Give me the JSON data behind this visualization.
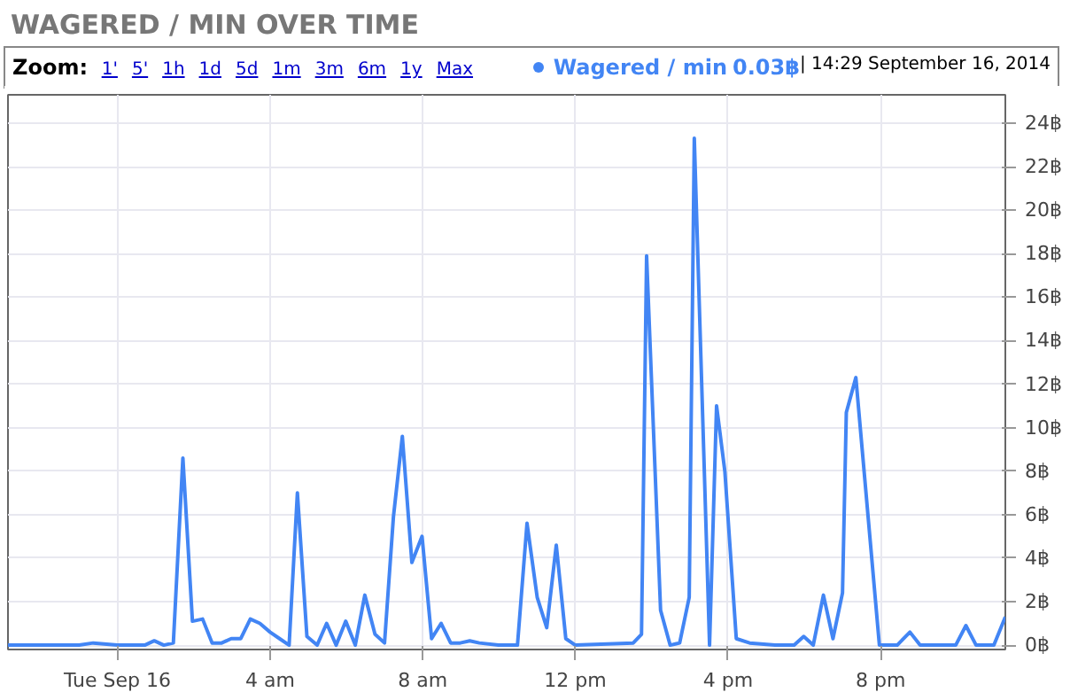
{
  "chart_data": {
    "type": "line",
    "title": "WAGERED / MIN OVER TIME",
    "annotations": [
      "Zoom:",
      "1'",
      "5'",
      "1h",
      "1d",
      "5d",
      "1m",
      "3m",
      "6m",
      "1y",
      "Max",
      "0.03฿",
      "| 14:29 September 16, 2014"
    ],
    "legend": "top right",
    "grid": true,
    "line_style": "solid",
    "xlim": [
      "2014-09-15T21:08",
      "2014-09-16T23:16"
    ],
    "xticks": [
      {
        "value": "2014-09-16T00:00",
        "label": "Tue Sep 16"
      },
      {
        "value": "2014-09-16T04:00",
        "label": "4 am"
      },
      {
        "value": "2014-09-16T08:00",
        "label": "8 am"
      },
      {
        "value": "2014-09-16T12:00",
        "label": "12 pm"
      },
      {
        "value": "2014-09-16T16:00",
        "label": "4 pm"
      },
      {
        "value": "2014-09-16T20:00",
        "label": "8 pm"
      }
    ],
    "ylim": [
      -0.2,
      25.3
    ],
    "yticks": [
      {
        "value": 0,
        "label": "0฿"
      },
      {
        "value": 2,
        "label": "2฿"
      },
      {
        "value": 4,
        "label": "4฿"
      },
      {
        "value": 6,
        "label": "6฿"
      },
      {
        "value": 8,
        "label": "8฿"
      },
      {
        "value": 10,
        "label": "10฿"
      },
      {
        "value": 12,
        "label": "12฿"
      },
      {
        "value": 14,
        "label": "14฿"
      },
      {
        "value": 16,
        "label": "16฿"
      },
      {
        "value": 18,
        "label": "18฿"
      },
      {
        "value": 20,
        "label": "20฿"
      },
      {
        "value": 22,
        "label": "22฿"
      },
      {
        "value": 24,
        "label": "24฿"
      }
    ],
    "x": [
      "2014-09-15T21:08",
      "2014-09-15T21:40",
      "2014-09-15T23:00",
      "2014-09-15T23:22",
      "2014-09-16T00:00",
      "2014-09-16T00:43",
      "2014-09-16T00:58",
      "2014-09-16T01:13",
      "2014-09-16T01:28",
      "2014-09-16T01:43",
      "2014-09-16T01:58",
      "2014-09-16T02:14",
      "2014-09-16T02:29",
      "2014-09-16T02:44",
      "2014-09-16T02:59",
      "2014-09-16T03:14",
      "2014-09-16T03:29",
      "2014-09-16T03:44",
      "2014-09-16T04:00",
      "2014-09-16T04:15",
      "2014-09-16T04:30",
      "2014-09-16T04:43",
      "2014-09-16T04:58",
      "2014-09-16T05:14",
      "2014-09-16T05:29",
      "2014-09-16T05:44",
      "2014-09-16T05:59",
      "2014-09-16T06:14",
      "2014-09-16T06:29",
      "2014-09-16T06:45",
      "2014-09-16T07:00",
      "2014-09-16T07:14",
      "2014-09-16T07:28",
      "2014-09-16T07:43",
      "2014-09-16T07:59",
      "2014-09-16T08:14",
      "2014-09-16T08:29",
      "2014-09-16T08:44",
      "2014-09-16T08:59",
      "2014-09-16T09:14",
      "2014-09-16T09:29",
      "2014-09-16T09:59",
      "2014-09-16T10:29",
      "2014-09-16T10:44",
      "2014-09-16T11:00",
      "2014-09-16T11:15",
      "2014-09-16T11:30",
      "2014-09-16T11:45",
      "2014-09-16T12:00",
      "2014-09-16T13:31",
      "2014-09-16T13:44",
      "2014-09-16T13:52",
      "2014-09-16T14:14",
      "2014-09-16T14:29",
      "2014-09-16T14:44",
      "2014-09-16T14:59",
      "2014-09-16T15:07",
      "2014-09-16T15:31",
      "2014-09-16T15:42",
      "2014-09-16T15:55",
      "2014-09-16T16:13",
      "2014-09-16T16:34",
      "2014-09-16T17:14",
      "2014-09-16T17:44",
      "2014-09-16T17:59",
      "2014-09-16T18:14",
      "2014-09-16T18:30",
      "2014-09-16T18:45",
      "2014-09-16T19:00",
      "2014-09-16T19:06",
      "2014-09-16T19:21",
      "2014-09-16T19:58",
      "2014-09-16T20:26",
      "2014-09-16T20:46",
      "2014-09-16T21:02",
      "2014-09-16T21:37",
      "2014-09-16T21:58",
      "2014-09-16T22:14",
      "2014-09-16T22:30",
      "2014-09-16T22:58",
      "2014-09-16T23:16"
    ],
    "series": [
      {
        "name": "Wagered / min",
        "color": "#4285f4",
        "values": [
          0,
          0,
          0,
          0.1,
          0,
          0,
          0.2,
          0,
          0.1,
          8.6,
          1.1,
          1.2,
          0.1,
          0.1,
          0.3,
          0.3,
          1.2,
          1.0,
          0.6,
          0.3,
          0,
          7.0,
          0.4,
          0,
          1.0,
          0,
          1.1,
          0,
          2.3,
          0.5,
          0.1,
          5.9,
          9.6,
          3.8,
          5.0,
          0.3,
          1.0,
          0.1,
          0.1,
          0.2,
          0.1,
          0,
          0,
          5.6,
          2.2,
          0.8,
          4.6,
          0.3,
          0,
          0.1,
          0.5,
          17.9,
          1.6,
          0,
          0.1,
          2.2,
          23.3,
          0,
          11.0,
          8.0,
          0.3,
          0.1,
          0,
          0,
          0.4,
          0,
          2.3,
          0.3,
          2.4,
          10.7,
          12.3,
          0,
          0,
          0.6,
          0,
          0,
          0,
          0.9,
          0,
          0,
          1.3
        ]
      }
    ]
  }
}
